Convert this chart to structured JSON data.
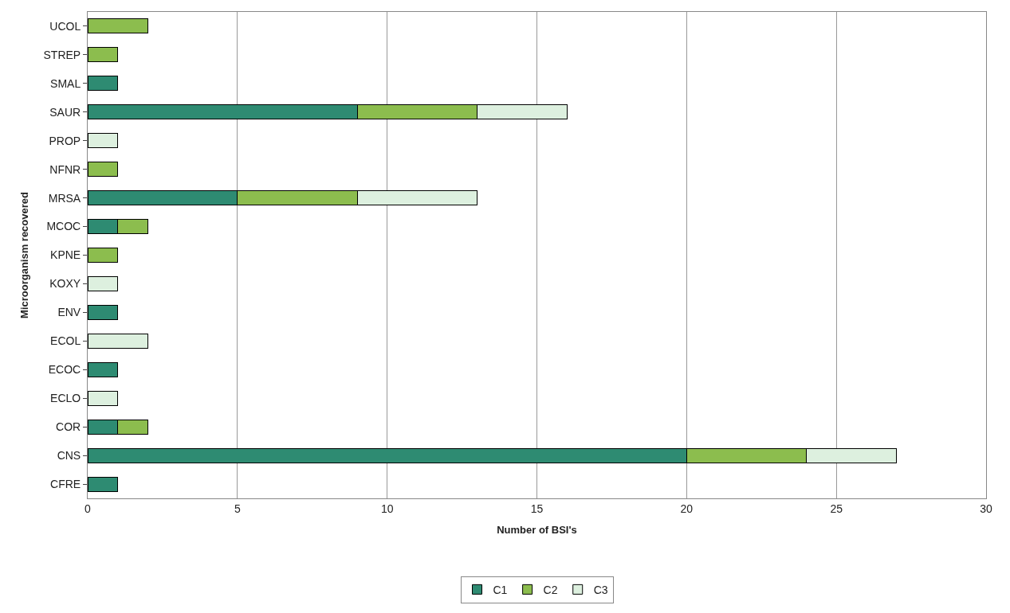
{
  "chart_data": {
    "type": "bar",
    "orientation": "horizontal",
    "stacked": true,
    "xlabel": "Number of BSI's",
    "ylabel": "Microorganism recovered",
    "categories": [
      "UCOL",
      "STREP",
      "SMAL",
      "SAUR",
      "PROP",
      "NFNR",
      "MRSA",
      "MCOC",
      "KPNE",
      "KOXY",
      "ENV",
      "ECOL",
      "ECOC",
      "ECLO",
      "COR",
      "CNS",
      "CFRE"
    ],
    "series": [
      {
        "name": "C1",
        "color": "#2e8b72",
        "values": [
          null,
          null,
          1,
          9,
          null,
          null,
          5,
          1,
          null,
          null,
          1,
          null,
          1,
          null,
          1,
          20,
          1
        ]
      },
      {
        "name": "C2",
        "color": "#8cbd4e",
        "values": [
          2,
          1,
          null,
          4,
          null,
          1,
          4,
          1,
          1,
          null,
          null,
          null,
          null,
          null,
          1,
          4,
          null
        ]
      },
      {
        "name": "C3",
        "color": "#ddf0df",
        "values": [
          null,
          null,
          null,
          3,
          1,
          null,
          4,
          null,
          null,
          1,
          null,
          2,
          null,
          1,
          null,
          3,
          null
        ]
      }
    ],
    "xlim": [
      0,
      30
    ],
    "xticks": [
      0,
      5,
      10,
      15,
      20,
      25,
      30
    ],
    "grid": "x",
    "legend": "bottom"
  }
}
